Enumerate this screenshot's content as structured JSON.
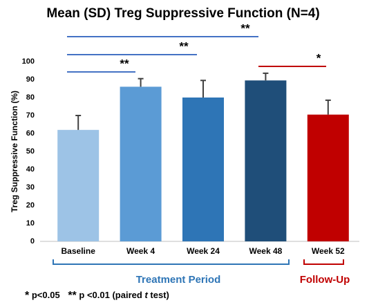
{
  "chart_data": {
    "type": "bar",
    "title": "Mean (SD) Treg Suppressive Function (N=4)",
    "y_label": "Treg Suppressive Function (%)",
    "categories": [
      "Baseline",
      "Week 4",
      "Week 24",
      "Week 48",
      "Week 52"
    ],
    "values": [
      62,
      86,
      80,
      89.5,
      70.5
    ],
    "errors": [
      8,
      4.5,
      9.5,
      4,
      8
    ],
    "colors": [
      "#9dc3e6",
      "#5b9bd5",
      "#2e75b6",
      "#1f4e79",
      "#c00000"
    ],
    "ylim": [
      0,
      100
    ],
    "yticks": [
      0,
      10,
      20,
      30,
      40,
      50,
      60,
      70,
      80,
      90,
      100
    ],
    "significance": [
      "**",
      "**",
      "**",
      "*"
    ],
    "groups": [
      "Treatment Period",
      "Follow-Up"
    ],
    "footnote": [
      "*",
      "p<0.05",
      "**",
      "p <0.01 (paired",
      "t",
      "test)"
    ]
  }
}
